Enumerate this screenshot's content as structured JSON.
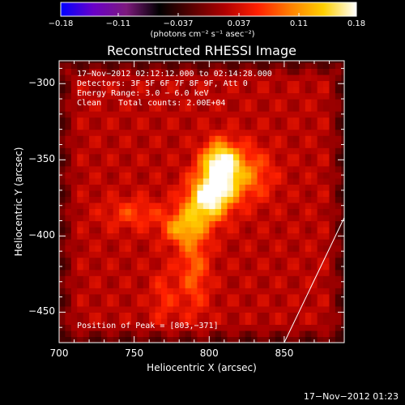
{
  "chart_data": {
    "type": "heatmap",
    "title": "Reconstructed RHESSI Image",
    "xlabel": "Heliocentric X (arcsec)",
    "ylabel": "Heliocentric Y (arcsec)",
    "xlim": [
      700,
      890
    ],
    "ylim": [
      -470,
      -285
    ],
    "x_ticks": [
      700,
      750,
      800,
      850
    ],
    "y_ticks": [
      -300,
      -350,
      -400,
      -450
    ],
    "x_tick_labels": [
      "700",
      "750",
      "800",
      "850"
    ],
    "y_tick_labels": [
      "−300",
      "−350",
      "−400",
      "−450"
    ],
    "colorbar": {
      "min": -0.18,
      "max": 0.18,
      "ticks": [
        -0.18,
        -0.11,
        -0.037,
        0.037,
        0.11,
        0.18
      ],
      "tick_labels": [
        "−0.18",
        "−0.11",
        "−0.037",
        "0.037",
        "0.11",
        "0.18"
      ],
      "units": "(photons cm⁻² s⁻¹ asec⁻²)",
      "colormap": [
        "#0000ff",
        "#6a00c8",
        "#7d1a7d",
        "#000000",
        "#5a0000",
        "#b00000",
        "#ff2000",
        "#ff8000",
        "#ffd000",
        "#ffffff"
      ]
    },
    "annotations": [
      "17−Nov−2012 02:12:12.000 to 02:14:28.000",
      "Detectors: 3F 5F 6F 7F 8F 9F, Att 0",
      "Energy Range: 3.0 − 6.0 keV",
      "Clean",
      "Total counts: 2.00E+04"
    ],
    "peak_label": "Position of Peak = [803,−371]",
    "peak": [
      803,
      -371
    ],
    "limb_line": [
      [
        850,
        -470
      ],
      [
        890,
        -388
      ]
    ],
    "sources": [
      {
        "x": 803,
        "y": -371,
        "sx": 10,
        "sy": 16,
        "rot": 35,
        "amp": 0.18
      },
      {
        "x": 807,
        "y": -350,
        "sx": 8,
        "sy": 9,
        "rot": 0,
        "amp": 0.12
      },
      {
        "x": 780,
        "y": -395,
        "sx": 8,
        "sy": 7,
        "rot": 0,
        "amp": 0.07
      },
      {
        "x": 790,
        "y": -420,
        "sx": 7,
        "sy": 22,
        "rot": 0,
        "amp": 0.06
      },
      {
        "x": 770,
        "y": -440,
        "sx": 6,
        "sy": 14,
        "rot": 0,
        "amp": 0.035
      },
      {
        "x": 750,
        "y": -385,
        "sx": 14,
        "sy": 7,
        "rot": 0,
        "amp": 0.045
      },
      {
        "x": 830,
        "y": -360,
        "sx": 10,
        "sy": 12,
        "rot": 0,
        "amp": 0.05
      }
    ],
    "background_level": 0.045
  },
  "footer_date": "17−Nov−2012 01:23"
}
